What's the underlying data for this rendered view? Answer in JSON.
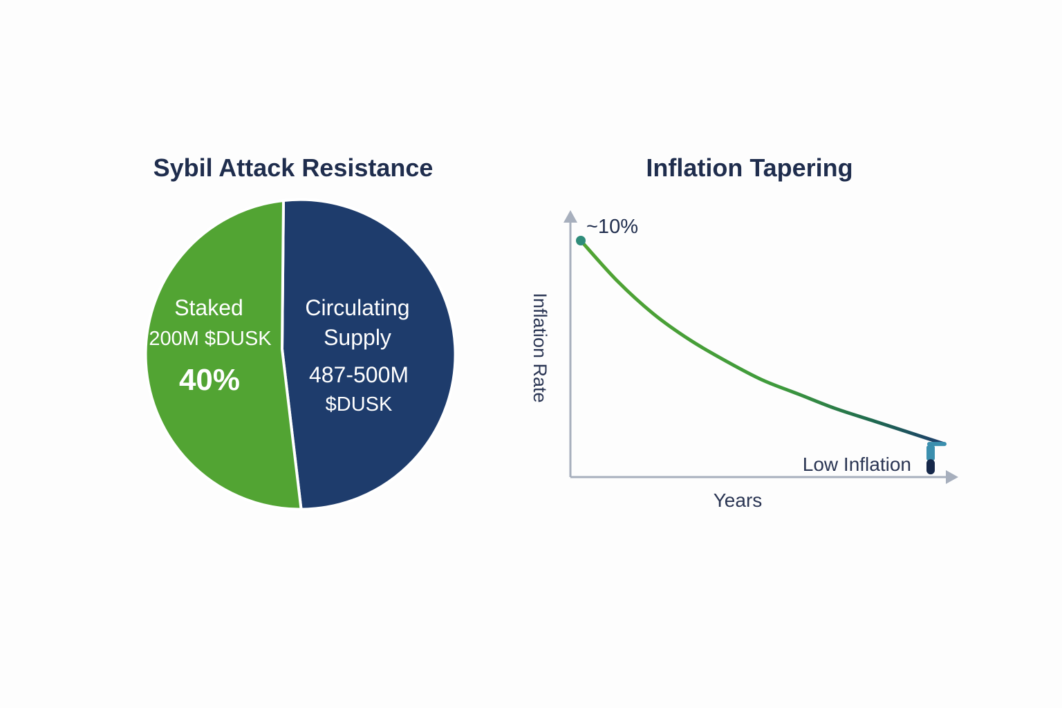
{
  "chart_data": [
    {
      "type": "pie",
      "title": "Sybil Attack Resistance",
      "slices": [
        {
          "name": "Staked",
          "amount_label": "200M $DUSK",
          "percent_label": "40%",
          "value": 40,
          "color": "#52a433"
        },
        {
          "name": "Circulating Supply",
          "name_lines": [
            "Circulating",
            "Supply"
          ],
          "amount_label": "487-500M $DUSK",
          "amount_lines": [
            "487-500M",
            "$DUSK"
          ],
          "value": 60,
          "color": "#1e3c6c"
        }
      ]
    },
    {
      "type": "line",
      "title": "Inflation Tapering",
      "xlabel": "Years",
      "ylabel": "Inflation Rate",
      "series": [
        {
          "x": [
            0,
            1,
            2,
            3,
            4,
            5,
            6,
            7,
            8,
            9,
            10
          ],
          "y": [
            10,
            8.3,
            6.9,
            5.8,
            4.9,
            4.1,
            3.5,
            2.9,
            2.4,
            1.9,
            1.4
          ]
        }
      ],
      "xlim": [
        0,
        11
      ],
      "ylim": [
        0,
        11
      ],
      "annotations": {
        "start_label": "~10%",
        "end_label": "Low Inflation"
      },
      "colors": {
        "start": "#52a433",
        "end": "#1e3c6c",
        "axis": "#a7afbd",
        "marker": "#2f8c7a",
        "end_marker": "#3b8fae"
      }
    }
  ]
}
